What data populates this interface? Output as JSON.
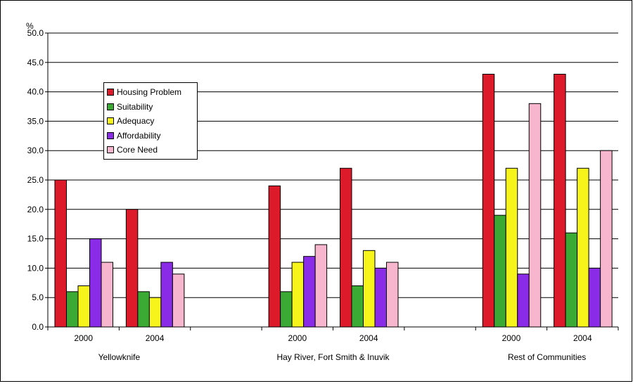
{
  "chart_data": {
    "type": "bar",
    "ylabel": "%",
    "ylim": [
      0,
      50
    ],
    "yticks": [
      "0.0",
      "5.0",
      "10.0",
      "15.0",
      "20.0",
      "25.0",
      "30.0",
      "35.0",
      "40.0",
      "45.0",
      "50.0"
    ],
    "grid": true,
    "legend_position": "upper-left",
    "groups": [
      {
        "label": "Yellowknife",
        "years": [
          "2000",
          "2004"
        ]
      },
      {
        "label": "Hay River, Fort Smith & Inuvik",
        "years": [
          "2000",
          "2004"
        ]
      },
      {
        "label": "Rest of Communities",
        "years": [
          "2000",
          "2004"
        ]
      }
    ],
    "categories": [
      "Yellowknife 2000",
      "Yellowknife 2004",
      "Hay River, Fort Smith & Inuvik 2000",
      "Hay River, Fort Smith & Inuvik 2004",
      "Rest of Communities 2000",
      "Rest of Communities 2004"
    ],
    "series": [
      {
        "name": "Housing Problem",
        "color": "#dd1a2a",
        "values": [
          25,
          20,
          24,
          27,
          43,
          43
        ]
      },
      {
        "name": "Suitability",
        "color": "#3aaa35",
        "values": [
          6,
          6,
          6,
          7,
          19,
          16
        ]
      },
      {
        "name": "Adequacy",
        "color": "#f7f41c",
        "values": [
          7,
          5,
          11,
          13,
          27,
          27
        ]
      },
      {
        "name": "Affordability",
        "color": "#8a2be8",
        "values": [
          15,
          11,
          12,
          10,
          9,
          10
        ]
      },
      {
        "name": "Core Need",
        "color": "#f7b6cd",
        "values": [
          11,
          9,
          14,
          11,
          38,
          30
        ]
      }
    ]
  }
}
